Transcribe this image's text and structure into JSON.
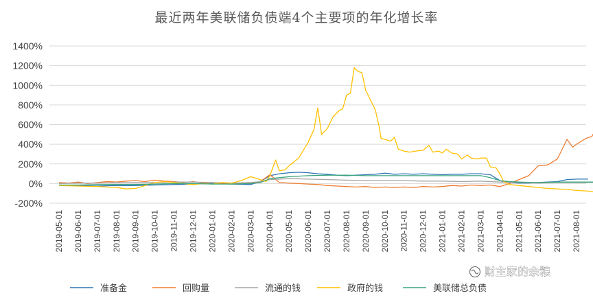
{
  "chart_data": {
    "type": "line",
    "title": "最近两年美联储负债端4个主要项的年化增长率",
    "xlabel": "",
    "ylabel": "",
    "ylim": [
      -2,
      14
    ],
    "y_ticks": [
      -2,
      0,
      2,
      4,
      6,
      8,
      10,
      12,
      14
    ],
    "y_tick_labels": [
      "-200%",
      "0%",
      "200%",
      "400%",
      "600%",
      "800%",
      "1000%",
      "1200%",
      "1400%"
    ],
    "grid": true,
    "legend_position": "bottom",
    "x_tick_labels": [
      "2019-05-01",
      "2019-06-01",
      "2019-07-01",
      "2019-08-01",
      "2019-09-01",
      "2019-10-01",
      "2019-11-01",
      "2019-12-01",
      "2020-01-01",
      "2020-02-01",
      "2020-03-01",
      "2020-04-01",
      "2020-05-01",
      "2020-06-01",
      "2020-07-01",
      "2020-08-01",
      "2020-09-01",
      "2020-10-01",
      "2020-11-01",
      "2020-12-01",
      "2021-01-01",
      "2021-02-01",
      "2021-03-01",
      "2021-04-01",
      "2021-05-01",
      "2021-06-01",
      "2021-07-01",
      "2021-08-01"
    ],
    "series": [
      {
        "name": "准备金",
        "color": "#2e75b6",
        "points": [
          [
            0,
            -0.15
          ],
          [
            1,
            -0.2
          ],
          [
            2,
            -0.25
          ],
          [
            3,
            -0.2
          ],
          [
            4,
            -0.2
          ],
          [
            5,
            -0.15
          ],
          [
            6,
            -0.1
          ],
          [
            7,
            -0.05
          ],
          [
            8,
            0
          ],
          [
            9,
            -0.05
          ],
          [
            10,
            -0.1
          ],
          [
            10.5,
            0.2
          ],
          [
            11,
            0.8
          ],
          [
            11.5,
            1.0
          ],
          [
            12,
            1.1
          ],
          [
            12.5,
            1.15
          ],
          [
            13,
            1.1
          ],
          [
            13.5,
            1.0
          ],
          [
            14,
            0.95
          ],
          [
            14.5,
            0.85
          ],
          [
            15,
            0.8
          ],
          [
            15.5,
            0.85
          ],
          [
            16,
            0.9
          ],
          [
            16.5,
            0.95
          ],
          [
            17,
            1.05
          ],
          [
            17.5,
            0.95
          ],
          [
            18,
            1.0
          ],
          [
            18.5,
            0.95
          ],
          [
            19,
            1.0
          ],
          [
            19.5,
            0.95
          ],
          [
            20,
            0.9
          ],
          [
            20.5,
            0.95
          ],
          [
            21,
            0.95
          ],
          [
            21.5,
            1.0
          ],
          [
            22,
            1.0
          ],
          [
            22.5,
            0.9
          ],
          [
            23,
            0.3
          ],
          [
            23.5,
            0.1
          ],
          [
            24,
            0.05
          ],
          [
            24.5,
            0.05
          ],
          [
            25,
            0.1
          ],
          [
            25.5,
            0.15
          ],
          [
            26,
            0.2
          ],
          [
            26.5,
            0.4
          ],
          [
            27,
            0.45
          ],
          [
            27.6,
            0.45
          ]
        ]
      },
      {
        "name": "回购量",
        "color": "#ed7d31",
        "points": [
          [
            0,
            0.1
          ],
          [
            0.5,
            0.05
          ],
          [
            1,
            0.15
          ],
          [
            1.5,
            0.0
          ],
          [
            2,
            0.1
          ],
          [
            2.5,
            0.2
          ],
          [
            3,
            0.15
          ],
          [
            3.5,
            0.25
          ],
          [
            4,
            0.3
          ],
          [
            4.5,
            0.2
          ],
          [
            5,
            0.35
          ],
          [
            5.5,
            0.25
          ],
          [
            6,
            0.2
          ],
          [
            6.5,
            0.1
          ],
          [
            7,
            0.2
          ],
          [
            7.5,
            0.05
          ],
          [
            8,
            0.1
          ],
          [
            8.5,
            0.0
          ],
          [
            9,
            -0.05
          ],
          [
            9.5,
            0.05
          ],
          [
            10,
            0.05
          ],
          [
            10.5,
            0.2
          ],
          [
            11,
            0.9
          ],
          [
            11.5,
            0.1
          ],
          [
            12,
            0.05
          ],
          [
            12.5,
            0.0
          ],
          [
            13,
            -0.05
          ],
          [
            13.5,
            -0.1
          ],
          [
            14,
            -0.2
          ],
          [
            14.5,
            -0.25
          ],
          [
            15,
            -0.3
          ],
          [
            15.5,
            -0.35
          ],
          [
            16,
            -0.3
          ],
          [
            16.5,
            -0.4
          ],
          [
            17,
            -0.35
          ],
          [
            17.5,
            -0.4
          ],
          [
            18,
            -0.35
          ],
          [
            18.5,
            -0.4
          ],
          [
            19,
            -0.3
          ],
          [
            19.5,
            -0.35
          ],
          [
            20,
            -0.3
          ],
          [
            20.5,
            -0.2
          ],
          [
            21,
            -0.25
          ],
          [
            21.5,
            -0.15
          ],
          [
            22,
            -0.2
          ],
          [
            22.5,
            -0.15
          ],
          [
            23,
            -0.3
          ],
          [
            23.5,
            0.0
          ],
          [
            24,
            0.4
          ],
          [
            24.5,
            0.8
          ],
          [
            25,
            1.8
          ],
          [
            25.5,
            1.9
          ],
          [
            26,
            2.5
          ],
          [
            26.5,
            4.5
          ],
          [
            26.8,
            3.7
          ],
          [
            27,
            4.0
          ],
          [
            27.5,
            4.6
          ],
          [
            27.8,
            4.8
          ],
          [
            28,
            5.5
          ]
        ]
      },
      {
        "name": "流通的钱",
        "color": "#a5a5a5",
        "points": [
          [
            0,
            0.0
          ],
          [
            1,
            0.05
          ],
          [
            2,
            0.05
          ],
          [
            3,
            0.1
          ],
          [
            4,
            0.1
          ],
          [
            5,
            0.1
          ],
          [
            6,
            0.15
          ],
          [
            7,
            0.15
          ],
          [
            8,
            0.1
          ],
          [
            9,
            0.05
          ],
          [
            10,
            0.1
          ],
          [
            10.5,
            0.2
          ],
          [
            11,
            0.4
          ],
          [
            12,
            0.5
          ],
          [
            13,
            0.45
          ],
          [
            14,
            0.4
          ],
          [
            15,
            0.35
          ],
          [
            16,
            0.3
          ],
          [
            17,
            0.3
          ],
          [
            18,
            0.3
          ],
          [
            19,
            0.25
          ],
          [
            20,
            0.25
          ],
          [
            21,
            0.2
          ],
          [
            22,
            0.25
          ],
          [
            23,
            0.15
          ],
          [
            24,
            0.1
          ],
          [
            25,
            0.05
          ],
          [
            26,
            0.1
          ],
          [
            27,
            0.1
          ],
          [
            28,
            0.1
          ]
        ]
      },
      {
        "name": "政府的钱",
        "color": "#ffc000",
        "points": [
          [
            0,
            -0.2
          ],
          [
            1,
            -0.25
          ],
          [
            2,
            -0.3
          ],
          [
            3,
            -0.4
          ],
          [
            3.5,
            -0.55
          ],
          [
            4,
            -0.5
          ],
          [
            4.5,
            -0.2
          ],
          [
            5,
            0.1
          ],
          [
            5.5,
            0.2
          ],
          [
            6,
            0.1
          ],
          [
            6.5,
            0.0
          ],
          [
            7,
            -0.1
          ],
          [
            7.5,
            0.0
          ],
          [
            8,
            -0.05
          ],
          [
            8.5,
            0.1
          ],
          [
            9,
            0.05
          ],
          [
            9.5,
            0.3
          ],
          [
            10,
            0.7
          ],
          [
            10.5,
            0.4
          ],
          [
            10.8,
            0.2
          ],
          [
            11,
            0.8
          ],
          [
            11.3,
            2.4
          ],
          [
            11.5,
            1.3
          ],
          [
            11.8,
            1.4
          ],
          [
            12,
            1.8
          ],
          [
            12.5,
            2.6
          ],
          [
            13,
            4.2
          ],
          [
            13.3,
            5.5
          ],
          [
            13.5,
            7.7
          ],
          [
            13.7,
            5.0
          ],
          [
            14,
            5.6
          ],
          [
            14.3,
            6.8
          ],
          [
            14.6,
            7.4
          ],
          [
            14.8,
            7.6
          ],
          [
            15,
            9.0
          ],
          [
            15.2,
            9.2
          ],
          [
            15.4,
            11.8
          ],
          [
            15.6,
            11.4
          ],
          [
            15.8,
            11.3
          ],
          [
            16,
            9.5
          ],
          [
            16.5,
            7.5
          ],
          [
            16.7,
            5.8
          ],
          [
            16.8,
            4.6
          ],
          [
            17,
            4.5
          ],
          [
            17.3,
            4.3
          ],
          [
            17.5,
            4.7
          ],
          [
            17.7,
            3.5
          ],
          [
            18,
            3.3
          ],
          [
            18.3,
            3.2
          ],
          [
            18.6,
            3.3
          ],
          [
            19,
            3.4
          ],
          [
            19.3,
            3.9
          ],
          [
            19.5,
            3.2
          ],
          [
            19.8,
            3.3
          ],
          [
            20,
            3.1
          ],
          [
            20.2,
            3.5
          ],
          [
            20.5,
            3.1
          ],
          [
            20.8,
            3.0
          ],
          [
            21,
            2.5
          ],
          [
            21.3,
            2.9
          ],
          [
            21.5,
            2.6
          ],
          [
            21.8,
            2.5
          ],
          [
            22,
            2.6
          ],
          [
            22.3,
            2.6
          ],
          [
            22.5,
            1.7
          ],
          [
            22.8,
            1.6
          ],
          [
            23,
            1.0
          ],
          [
            23.2,
            0.2
          ],
          [
            23.5,
            -0.1
          ],
          [
            24,
            -0.2
          ],
          [
            24.5,
            -0.3
          ],
          [
            25,
            -0.4
          ],
          [
            25.5,
            -0.5
          ],
          [
            26,
            -0.55
          ],
          [
            26.5,
            -0.6
          ],
          [
            27,
            -0.7
          ],
          [
            27.5,
            -0.75
          ],
          [
            28,
            -0.85
          ]
        ]
      },
      {
        "name": "美联储总负债",
        "color": "#3aa57c",
        "points": [
          [
            0,
            -0.15
          ],
          [
            1,
            -0.15
          ],
          [
            2,
            -0.1
          ],
          [
            3,
            -0.1
          ],
          [
            4,
            -0.1
          ],
          [
            5,
            -0.05
          ],
          [
            6,
            0.0
          ],
          [
            7,
            0.0
          ],
          [
            8,
            -0.05
          ],
          [
            9,
            -0.05
          ],
          [
            10,
            0.0
          ],
          [
            10.5,
            0.1
          ],
          [
            11,
            0.5
          ],
          [
            11.5,
            0.6
          ],
          [
            12,
            0.7
          ],
          [
            13,
            0.8
          ],
          [
            14,
            0.85
          ],
          [
            15,
            0.85
          ],
          [
            16,
            0.8
          ],
          [
            17,
            0.8
          ],
          [
            18,
            0.8
          ],
          [
            19,
            0.8
          ],
          [
            20,
            0.8
          ],
          [
            21,
            0.8
          ],
          [
            22,
            0.8
          ],
          [
            22.5,
            0.6
          ],
          [
            23,
            0.3
          ],
          [
            23.5,
            0.2
          ],
          [
            24,
            0.15
          ],
          [
            25,
            0.1
          ],
          [
            26,
            0.15
          ],
          [
            27,
            0.15
          ],
          [
            28,
            0.15
          ]
        ]
      }
    ]
  },
  "watermark": {
    "text": "财主家的余粮",
    "icon": "wechat-channel-icon"
  }
}
